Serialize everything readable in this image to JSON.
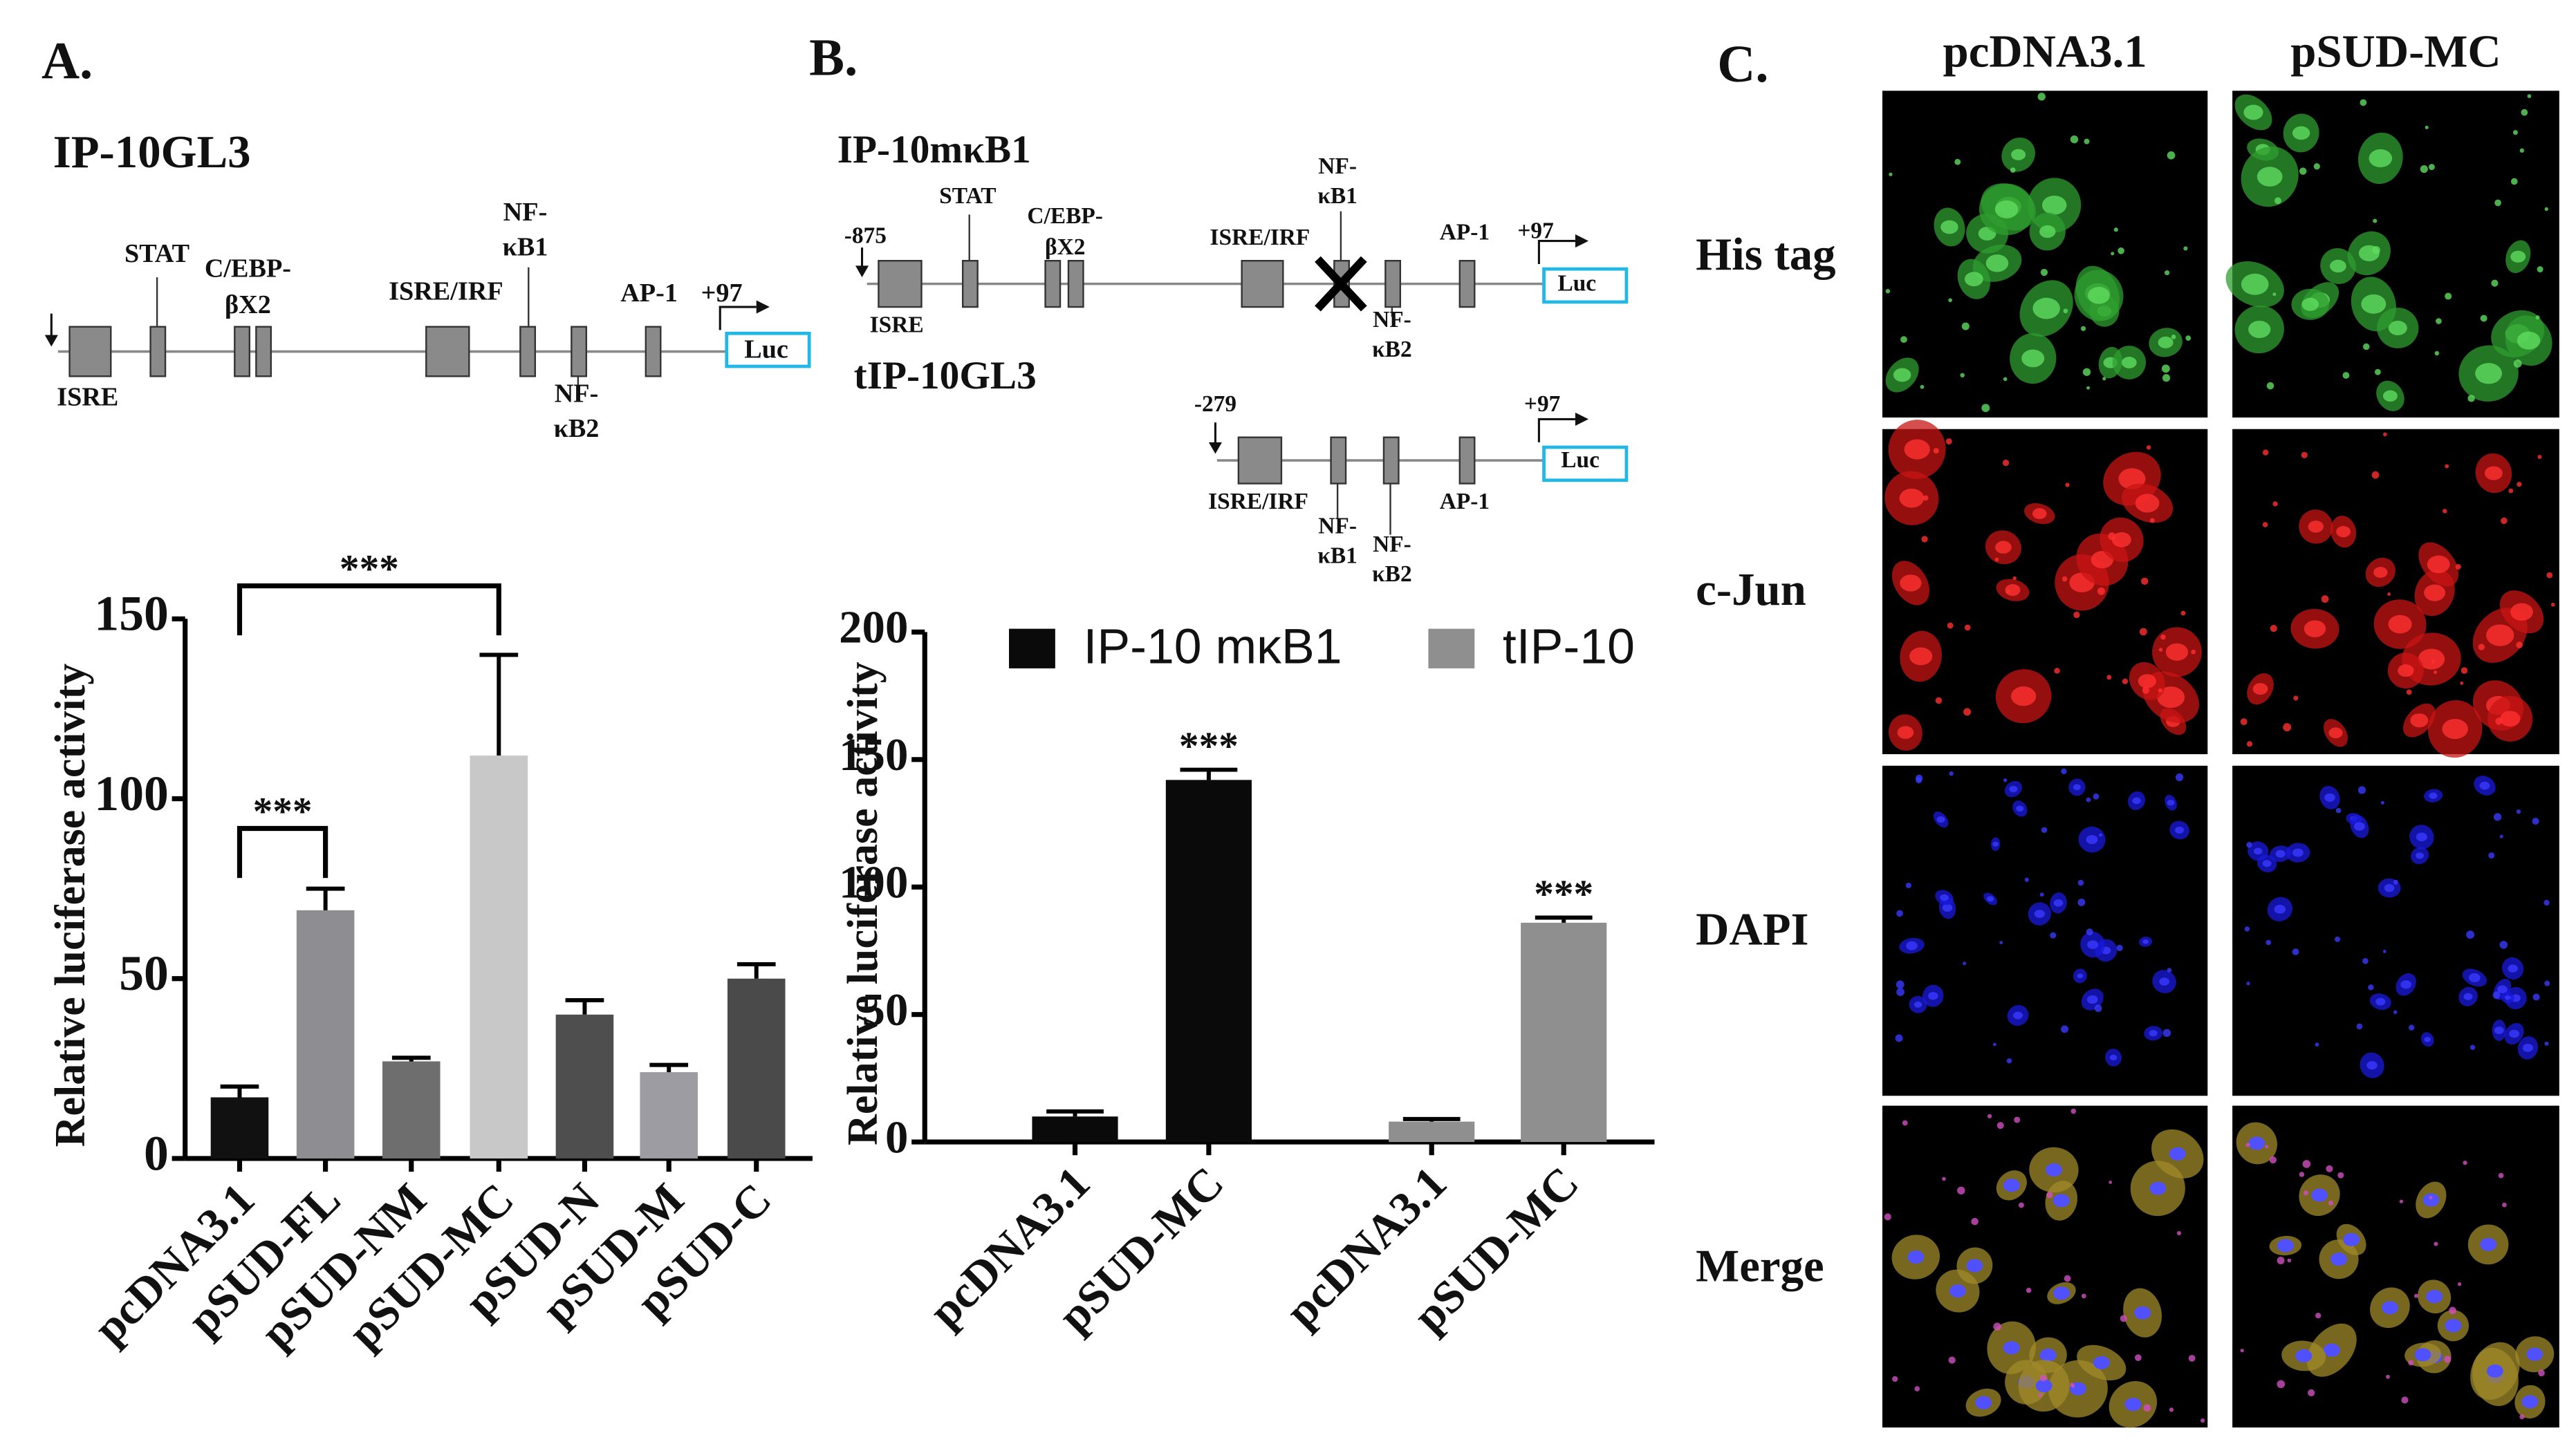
{
  "panels": {
    "a": "A.",
    "b": "B.",
    "c": "C."
  },
  "diagrams": {
    "a": {
      "title": "IP-10GL3",
      "labels": [
        [
          "STAT"
        ],
        [
          "C/EBP-",
          "βX2"
        ],
        [
          "ISRE/IRF"
        ],
        [
          "NF-",
          "κB1"
        ],
        [
          "AP-1"
        ],
        [
          "+97"
        ],
        [
          "Luc"
        ],
        [
          "ISRE"
        ],
        [
          "NF-",
          "κB2"
        ]
      ]
    },
    "b1": {
      "title": "IP-10mκB1",
      "labels": [
        [
          "-875"
        ],
        [
          "STAT"
        ],
        [
          "C/EBP-",
          "βX2"
        ],
        [
          "ISRE/IRF"
        ],
        [
          "NF-",
          "κB1"
        ],
        [
          "AP-1"
        ],
        [
          "+97"
        ],
        [
          "Luc"
        ],
        [
          "ISRE"
        ],
        [
          "NF-",
          "κB2"
        ]
      ]
    },
    "b2": {
      "title": "tIP-10GL3",
      "labels": [
        [
          "-279"
        ],
        [
          "+97"
        ],
        [
          "Luc"
        ],
        [
          "ISRE/IRF"
        ],
        [
          "NF-",
          "κB1"
        ],
        [
          "NF-",
          "κB2"
        ],
        [
          "AP-1"
        ]
      ]
    }
  },
  "chart_data": [
    {
      "type": "bar",
      "y_label": "Relative luciferase activity",
      "categories": [
        "pcDNA3.1",
        "pSUD-FL",
        "pSUD-NM",
        "pSUD-MC",
        "pSUD-N",
        "pSUD-M",
        "pSUD-C"
      ],
      "values": [
        17,
        69,
        27,
        112,
        40,
        24,
        50
      ],
      "errors": [
        3,
        6,
        1,
        28,
        4,
        2,
        4
      ],
      "colors": [
        "#111111",
        "#8e8e92",
        "#6e6e6e",
        "#c8c8c8",
        "#4e4e4e",
        "#9c9ca2",
        "#4a4a4a"
      ],
      "ylim": [
        0,
        150
      ],
      "yticks": [
        0,
        50,
        100,
        150
      ],
      "annotations": [
        "***",
        "***"
      ]
    },
    {
      "type": "bar",
      "y_label": "Relative luciferase activity",
      "categories": [
        "pcDNA3.1",
        "pSUD-MC",
        "pcDNA3.1",
        "pSUD-MC"
      ],
      "series": [
        {
          "name": "IP-10 mκB1",
          "color": "#0a0a0a",
          "values": [
            10,
            142,
            null,
            null
          ],
          "errors": [
            2,
            4,
            null,
            null
          ]
        },
        {
          "name": "tIP-10",
          "color": "#8f8f8f",
          "values": [
            null,
            null,
            8,
            86
          ],
          "errors": [
            null,
            null,
            1,
            2
          ]
        }
      ],
      "ylim": [
        0,
        200
      ],
      "yticks": [
        0,
        50,
        100,
        150,
        200
      ],
      "annotations": [
        "***",
        "***"
      ]
    }
  ],
  "microscopy": {
    "columns": [
      "pcDNA3.1",
      "pSUD-MC"
    ],
    "rows": [
      "His tag",
      "c-Jun",
      "DAPI",
      "Merge"
    ]
  }
}
